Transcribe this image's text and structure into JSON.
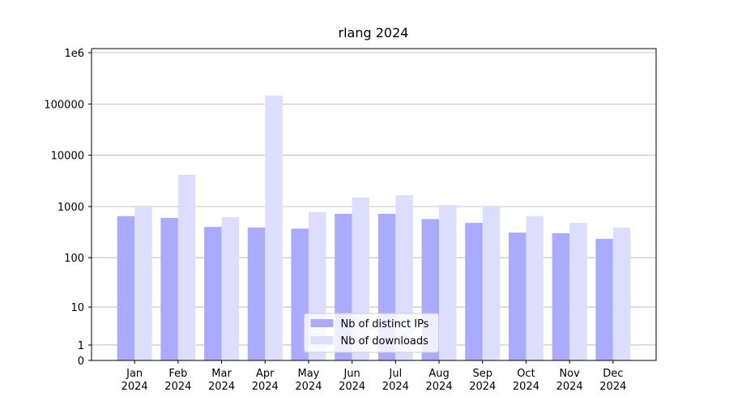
{
  "chart_data": {
    "type": "bar",
    "title": "rlang 2024",
    "categories": [
      "Jan\n2024",
      "Feb\n2024",
      "Mar\n2024",
      "Apr\n2024",
      "May\n2024",
      "Jun\n2024",
      "Jul\n2024",
      "Aug\n2024",
      "Sep\n2024",
      "Oct\n2024",
      "Nov\n2024",
      "Dec\n2024"
    ],
    "series": [
      {
        "name": "Nb of distinct IPs",
        "color": "#aaaaff",
        "values": [
          650,
          600,
          400,
          390,
          370,
          720,
          720,
          570,
          480,
          310,
          300,
          234
        ]
      },
      {
        "name": "Nb of downloads",
        "color": "#ddddff",
        "values": [
          1000,
          4150,
          620,
          145000,
          780,
          1490,
          1660,
          1080,
          960,
          650,
          480,
          390
        ]
      }
    ],
    "yscale": "log1p",
    "ylim": [
      0,
      1200000
    ],
    "yticks": [
      0,
      1,
      10,
      100,
      1000,
      10000,
      100000,
      {
        "value": 1000000,
        "label": "1e6"
      }
    ],
    "grid": true,
    "legend": "lower center"
  }
}
